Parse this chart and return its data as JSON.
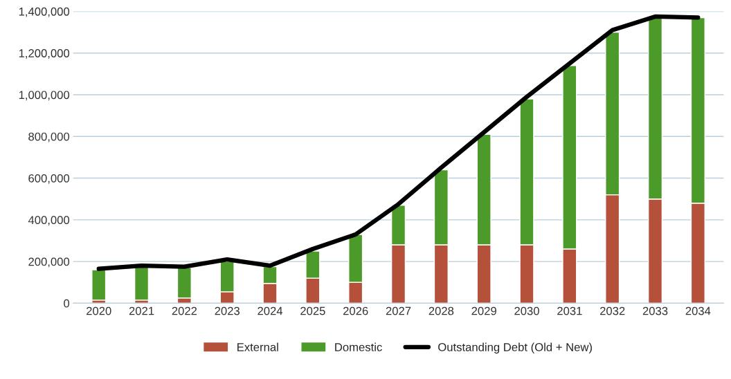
{
  "chart_data": {
    "type": "bar",
    "stacked": true,
    "categories": [
      "2020",
      "2021",
      "2022",
      "2023",
      "2024",
      "2025",
      "2026",
      "2027",
      "2028",
      "2029",
      "2030",
      "2031",
      "2032",
      "2033",
      "2034"
    ],
    "series": [
      {
        "name": "External",
        "color": "#b5503a",
        "values": [
          15000,
          15000,
          25000,
          55000,
          95000,
          120000,
          100000,
          280000,
          280000,
          280000,
          280000,
          260000,
          520000,
          500000,
          480000
        ]
      },
      {
        "name": "Domestic",
        "color": "#4c9a2a",
        "values": [
          145000,
          160000,
          145000,
          145000,
          80000,
          130000,
          230000,
          190000,
          360000,
          530000,
          700000,
          880000,
          780000,
          870000,
          890000
        ]
      },
      {
        "name": "Outstanding Debt (Old + New)",
        "type": "line",
        "color": "#000000",
        "values": [
          165000,
          180000,
          175000,
          210000,
          180000,
          260000,
          330000,
          475000,
          650000,
          820000,
          990000,
          1150000,
          1310000,
          1375000,
          1370000
        ]
      }
    ],
    "ylim": [
      0,
      1400000
    ],
    "yticks": [
      {
        "value": 0,
        "label": "0"
      },
      {
        "value": 200000,
        "label": "200,000"
      },
      {
        "value": 400000,
        "label": "400,000"
      },
      {
        "value": 600000,
        "label": "600,000"
      },
      {
        "value": 800000,
        "label": "800,000"
      },
      {
        "value": 1000000,
        "label": "1,000,000"
      },
      {
        "value": 1200000,
        "label": "1,200,000"
      },
      {
        "value": 1400000,
        "label": "1,400,000"
      }
    ],
    "grid": "y",
    "legend": "bottom",
    "marker": "none",
    "line_style": "solid"
  }
}
